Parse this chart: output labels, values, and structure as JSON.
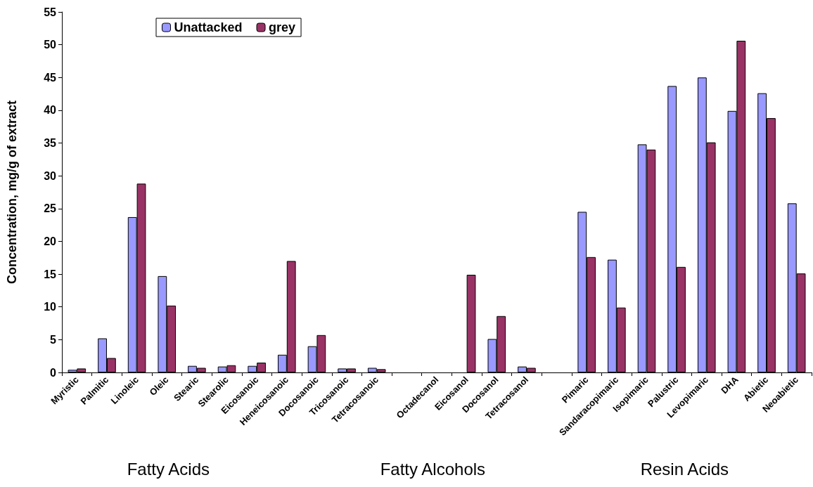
{
  "chart_data": {
    "type": "bar",
    "ylabel": "Concentration, mg/g of extract",
    "categories": [
      "Myristic",
      "Palmitic",
      "Linoleic",
      "Oleic",
      "Stearic",
      "Stearolic",
      "Eicosanoic",
      "Heneicosanoic",
      "Docosanoic",
      "Tricosanoic",
      "Tetracosanoic",
      null,
      "Octadecanol",
      "Eicosanol",
      "Docosanol",
      "Tetracosanol",
      null,
      "Pimaric",
      "Sandaracopimaric",
      "Isopimaric",
      "Palustric",
      "Levopimaric",
      "DHA",
      "Abietic",
      "Neoabietic"
    ],
    "series": [
      {
        "name": "Unattacked",
        "color": "#9999ff",
        "values": [
          0.4,
          5.2,
          23.7,
          14.7,
          1.0,
          0.9,
          1.0,
          2.7,
          4.0,
          0.6,
          0.7,
          null,
          null,
          null,
          5.1,
          0.9,
          null,
          24.5,
          17.2,
          34.8,
          43.7,
          45.0,
          39.9,
          42.6,
          25.8
        ]
      },
      {
        "name": "grey",
        "color": "#993366",
        "values": [
          0.6,
          2.2,
          28.8,
          10.2,
          0.7,
          1.1,
          1.5,
          17.0,
          5.7,
          0.6,
          0.5,
          null,
          null,
          14.9,
          8.6,
          0.7,
          null,
          17.6,
          9.9,
          34.0,
          16.1,
          35.1,
          50.6,
          38.8,
          15.1
        ]
      }
    ],
    "ylim": [
      0,
      55
    ],
    "yticks": [
      0,
      5,
      10,
      15,
      20,
      25,
      30,
      35,
      40,
      45,
      50,
      55
    ],
    "legend": "top left",
    "grid": false,
    "annotations": [
      "Fatty Acids",
      "Fatty Alcohols",
      "Resin Acids"
    ]
  }
}
